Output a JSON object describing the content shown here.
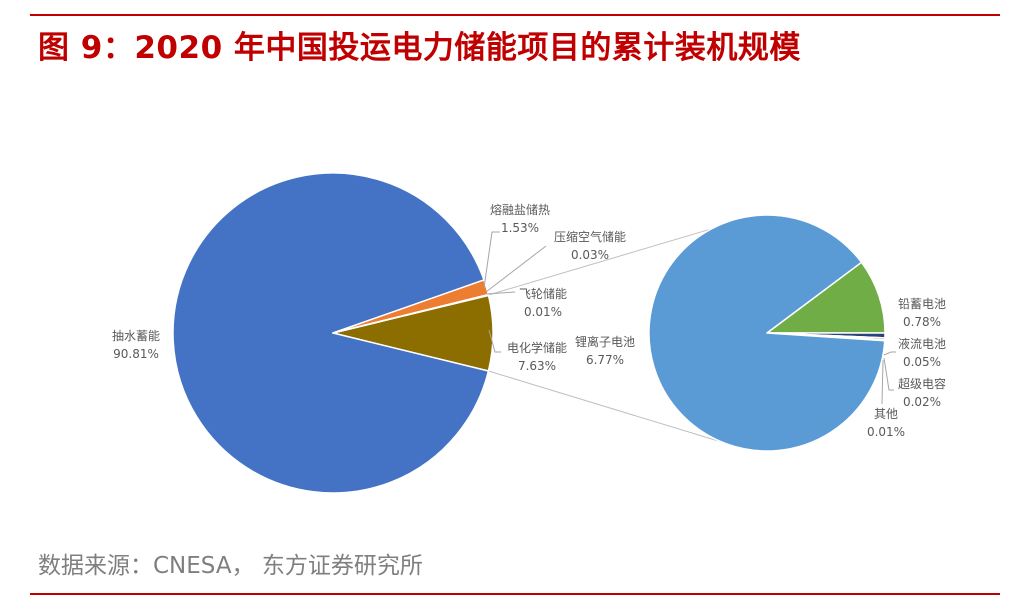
{
  "header": {
    "title": "图 9：2020 年中国投运电力储能项目的累计装机规模"
  },
  "footer": {
    "source": "数据来源：CNESA， 东方证券研究所"
  },
  "colors": {
    "accent_red": "#c00000",
    "pumped_hydro": "#4472c4",
    "molten_salt": "#ed7d31",
    "compressed_air": "#a5a5a5",
    "flywheel": "#ffc000",
    "electrochemical": "#8b6d00",
    "lithium_ion": "#5b9bd5",
    "lead_carbon": "#70ad47",
    "flow_battery": "#264478",
    "supercapacitor": "#9e480e",
    "other": "#636363",
    "connector": "#bfbfbf"
  },
  "chart_data": [
    {
      "type": "pie",
      "name": "main",
      "slices": [
        {
          "label": "抽水蓄能",
          "value": 90.81,
          "display": "90.81%"
        },
        {
          "label": "熔融盐储热",
          "value": 1.53,
          "display": "1.53%"
        },
        {
          "label": "压缩空气储能",
          "value": 0.03,
          "display": "0.03%"
        },
        {
          "label": "飞轮储能",
          "value": 0.01,
          "display": "0.01%"
        },
        {
          "label": "电化学储能",
          "value": 7.63,
          "display": "7.63%"
        }
      ]
    },
    {
      "type": "pie",
      "name": "electrochemical-breakdown",
      "parent_slice": "电化学储能",
      "slices": [
        {
          "label": "锂离子电池",
          "value": 6.77,
          "display": "6.77%"
        },
        {
          "label": "铅蓄电池",
          "value": 0.78,
          "display": "0.78%"
        },
        {
          "label": "液流电池",
          "value": 0.05,
          "display": "0.05%"
        },
        {
          "label": "超级电容",
          "value": 0.02,
          "display": "0.02%"
        },
        {
          "label": "其他",
          "value": 0.01,
          "display": "0.01%"
        }
      ]
    }
  ]
}
